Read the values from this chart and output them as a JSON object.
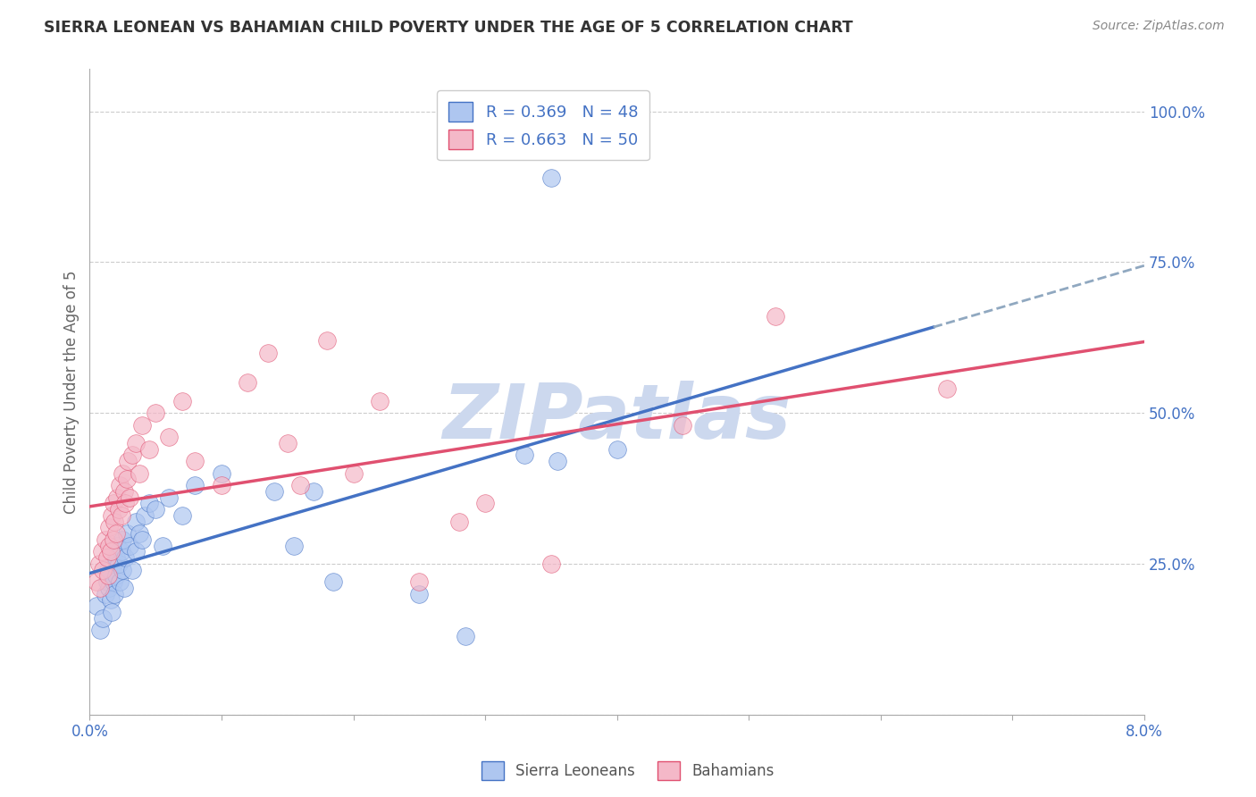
{
  "title": "SIERRA LEONEAN VS BAHAMIAN CHILD POVERTY UNDER THE AGE OF 5 CORRELATION CHART",
  "source": "Source: ZipAtlas.com",
  "ylabel": "Child Poverty Under the Age of 5",
  "xmin": 0.0,
  "xmax": 8.0,
  "ymin": 0.0,
  "ymax": 107.0,
  "series1_label": "Sierra Leoneans",
  "series1_R": "R = 0.369",
  "series1_N": "N = 48",
  "series1_color": "#aec6f0",
  "series1_edge_color": "#4472c4",
  "series1_line_color": "#4472c4",
  "series2_label": "Bahamians",
  "series2_R": "R = 0.663",
  "series2_N": "N = 50",
  "series2_color": "#f4b8c8",
  "series2_edge_color": "#e05070",
  "series2_line_color": "#e05070",
  "dash_color": "#90a8c0",
  "watermark": "ZIPatlas",
  "watermark_color": "#ccd8ee",
  "background_color": "#ffffff",
  "grid_color": "#cccccc",
  "title_color": "#333333",
  "axis_label_color": "#4472c4",
  "sierra_x": [
    0.05,
    0.08,
    0.1,
    0.12,
    0.13,
    0.14,
    0.15,
    0.15,
    0.16,
    0.17,
    0.18,
    0.18,
    0.19,
    0.2,
    0.2,
    0.21,
    0.22,
    0.23,
    0.24,
    0.25,
    0.25,
    0.26,
    0.27,
    0.28,
    0.3,
    0.32,
    0.35,
    0.35,
    0.38,
    0.4,
    0.42,
    0.45,
    0.5,
    0.55,
    0.6,
    0.7,
    0.8,
    1.0,
    1.4,
    1.55,
    1.7,
    1.85,
    2.5,
    2.85,
    3.3,
    4.0,
    3.5,
    3.55
  ],
  "sierra_y": [
    18,
    14,
    16,
    20,
    22,
    24,
    21,
    23,
    19,
    17,
    22,
    25,
    20,
    26,
    23,
    28,
    25,
    22,
    27,
    24,
    29,
    21,
    26,
    30,
    28,
    24,
    27,
    32,
    30,
    29,
    33,
    35,
    34,
    28,
    36,
    33,
    38,
    40,
    37,
    28,
    37,
    22,
    20,
    13,
    43,
    44,
    89,
    42
  ],
  "bahamian_x": [
    0.05,
    0.07,
    0.08,
    0.09,
    0.1,
    0.12,
    0.13,
    0.14,
    0.15,
    0.15,
    0.16,
    0.17,
    0.18,
    0.18,
    0.19,
    0.2,
    0.21,
    0.22,
    0.23,
    0.24,
    0.25,
    0.26,
    0.27,
    0.28,
    0.29,
    0.3,
    0.32,
    0.35,
    0.38,
    0.4,
    0.45,
    0.5,
    0.6,
    0.7,
    0.8,
    1.0,
    1.2,
    1.5,
    1.8,
    2.0,
    2.5,
    3.0,
    3.5,
    4.5,
    5.2,
    6.5,
    2.8,
    2.2,
    1.35,
    1.6
  ],
  "bahamian_y": [
    22,
    25,
    21,
    27,
    24,
    29,
    26,
    23,
    31,
    28,
    27,
    33,
    29,
    35,
    32,
    30,
    36,
    34,
    38,
    33,
    40,
    37,
    35,
    39,
    42,
    36,
    43,
    45,
    40,
    48,
    44,
    50,
    46,
    52,
    42,
    38,
    55,
    45,
    62,
    40,
    22,
    35,
    25,
    48,
    66,
    54,
    32,
    52,
    60,
    38
  ]
}
